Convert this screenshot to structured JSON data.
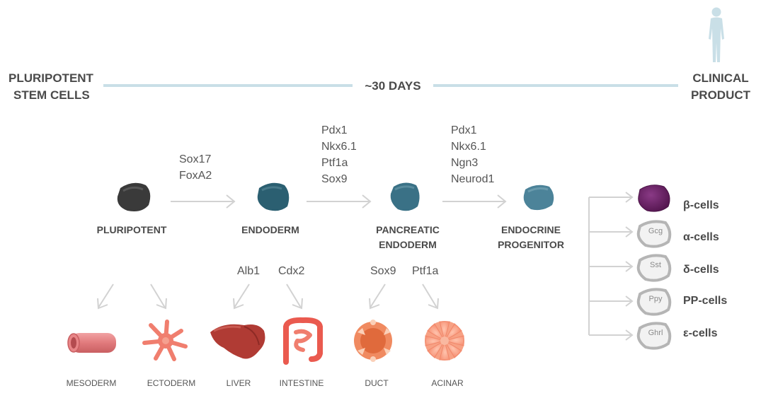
{
  "header": {
    "left_line1": "PLURIPOTENT",
    "left_line2": "STEM CELLS",
    "timeline": "~30 DAYS",
    "right_line1": "CLINICAL",
    "right_line2": "PRODUCT"
  },
  "stages": [
    {
      "label1": "PLURIPOTENT",
      "label2": "",
      "color": "#4a4a4a"
    },
    {
      "label1": "ENDODERM",
      "label2": "",
      "color": "#2e6476"
    },
    {
      "label1": "PANCREATIC",
      "label2": "ENDODERM",
      "color": "#3d7489"
    },
    {
      "label1": "ENDOCRINE",
      "label2": "PROGENITOR",
      "color": "#4f869c"
    }
  ],
  "markers": [
    {
      "lines": [
        "Sox17",
        "FoxA2"
      ]
    },
    {
      "lines": [
        "Pdx1",
        "Nkx6.1",
        "Ptf1a",
        "Sox9"
      ]
    },
    {
      "lines": [
        "Pdx1",
        "Nkx6.1",
        "Ngn3",
        "Neurod1"
      ]
    }
  ],
  "branch_markers": {
    "endoderm": [
      "Alb1",
      "Cdx2"
    ],
    "pancreatic": [
      "Sox9",
      "Ptf1a"
    ]
  },
  "tissues": [
    {
      "label": "MESODERM",
      "icon": "vessel-icon"
    },
    {
      "label": "ECTODERM",
      "icon": "neuron-icon"
    },
    {
      "label": "LIVER",
      "icon": "liver-icon"
    },
    {
      "label": "INTESTINE",
      "icon": "intestine-icon"
    },
    {
      "label": "DUCT",
      "icon": "duct-icon"
    },
    {
      "label": "ACINAR",
      "icon": "acinar-icon"
    }
  ],
  "fates": [
    {
      "hormone": "",
      "label": "β-cells",
      "color": "#6a1f66"
    },
    {
      "hormone": "Gcg",
      "label": "α-cells",
      "color": "#f3f3f3"
    },
    {
      "hormone": "Sst",
      "label": "δ-cells",
      "color": "#f3f3f3"
    },
    {
      "hormone": "Ppy",
      "label": "PP-cells",
      "color": "#f3f3f3"
    },
    {
      "hormone": "Ghrl",
      "label": "ε-cells",
      "color": "#f3f3f3"
    }
  ],
  "colors": {
    "timeline_bar": "#c9dfe7",
    "arrow": "#d2d2d2",
    "person": "#c9dfe7"
  }
}
